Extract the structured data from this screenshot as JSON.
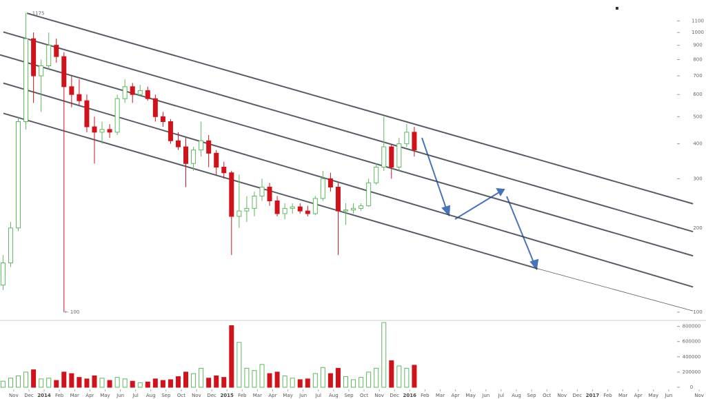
{
  "chart_data": {
    "type": "candlestick",
    "log_y": true,
    "up_color": "#5cb85c",
    "down_color": "#d0121b",
    "line_color": "#3a3f4b",
    "xlim": [
      -0.9,
      45.45
    ],
    "ylim": [
      95,
      1200
    ],
    "volume_ylim": [
      0,
      860000
    ],
    "yticks": [
      100,
      200,
      300,
      400,
      500,
      600,
      700,
      800,
      900,
      1000,
      1100
    ],
    "volume_yticks": [
      0,
      200000,
      400000,
      600000,
      800000
    ],
    "xticks": [
      {
        "value": 0,
        "label": "Nov"
      },
      {
        "value": 1,
        "label": "Dec"
      },
      {
        "value": 2,
        "label": "2014"
      },
      {
        "value": 3,
        "label": "Feb"
      },
      {
        "value": 4,
        "label": "Mar"
      },
      {
        "value": 5,
        "label": "Apr"
      },
      {
        "value": 6,
        "label": "May"
      },
      {
        "value": 7,
        "label": "Jun"
      },
      {
        "value": 8,
        "label": "Jul"
      },
      {
        "value": 9,
        "label": "Aug"
      },
      {
        "value": 10,
        "label": "Sep"
      },
      {
        "value": 11,
        "label": "Oct"
      },
      {
        "value": 12,
        "label": "Nov"
      },
      {
        "value": 13,
        "label": "Dec"
      },
      {
        "value": 14,
        "label": "2015"
      },
      {
        "value": 15,
        "label": "Feb"
      },
      {
        "value": 16,
        "label": "Mar"
      },
      {
        "value": 17,
        "label": "Apr"
      },
      {
        "value": 18,
        "label": "May"
      },
      {
        "value": 19,
        "label": "Jun"
      },
      {
        "value": 20,
        "label": "Jul"
      },
      {
        "value": 21,
        "label": "Aug"
      },
      {
        "value": 22,
        "label": "Sep"
      },
      {
        "value": 23,
        "label": "Oct"
      },
      {
        "value": 24,
        "label": "Nov"
      },
      {
        "value": 25,
        "label": "Dec"
      },
      {
        "value": 26,
        "label": "2016"
      },
      {
        "value": 27,
        "label": "Feb"
      },
      {
        "value": 28,
        "label": "Mar"
      },
      {
        "value": 29,
        "label": "Apr"
      },
      {
        "value": 30,
        "label": "May"
      },
      {
        "value": 31,
        "label": "Jun"
      },
      {
        "value": 32,
        "label": "Jul"
      },
      {
        "value": 33,
        "label": "Aug"
      },
      {
        "value": 34,
        "label": "Sep"
      },
      {
        "value": 35,
        "label": "Oct"
      },
      {
        "value": 36,
        "label": "Nov"
      },
      {
        "value": 37,
        "label": "Dec"
      },
      {
        "value": 38,
        "label": "2017"
      },
      {
        "value": 39,
        "label": "Feb"
      },
      {
        "value": 40,
        "label": "Mar"
      },
      {
        "value": 41,
        "label": "Apr"
      },
      {
        "value": 42,
        "label": "May"
      },
      {
        "value": 43,
        "label": "Jun"
      },
      {
        "value": 45,
        "label": "Nov"
      }
    ],
    "candles": {
      "x": [
        -0.7,
        -0.2,
        0.3,
        0.8,
        1.3,
        1.8,
        2.3,
        2.8,
        3.3,
        3.8,
        4.3,
        4.8,
        5.3,
        5.8,
        6.3,
        6.8,
        7.3,
        7.8,
        8.3,
        8.8,
        9.3,
        9.8,
        10.3,
        10.8,
        11.3,
        11.8,
        12.3,
        12.8,
        13.3,
        13.8,
        14.3,
        14.8,
        15.3,
        15.8,
        16.3,
        16.8,
        17.3,
        17.8,
        18.3,
        18.8,
        19.3,
        19.8,
        20.3,
        20.8,
        21.3,
        21.8,
        22.3,
        22.8,
        23.3,
        23.8,
        24.3,
        24.8,
        25.3,
        25.8,
        26.3
      ],
      "open": [
        125,
        150,
        200,
        480,
        950,
        700,
        760,
        900,
        820,
        640,
        600,
        570,
        460,
        440,
        450,
        440,
        580,
        640,
        600,
        620,
        580,
        500,
        480,
        410,
        390,
        340,
        380,
        410,
        370,
        330,
        315,
        220,
        230,
        235,
        260,
        280,
        250,
        225,
        235,
        238,
        230,
        225,
        255,
        300,
        280,
        230,
        232,
        235,
        240,
        290,
        330,
        390,
        330,
        400,
        440
      ],
      "high": [
        160,
        210,
        500,
        1175,
        1000,
        800,
        1000,
        950,
        850,
        700,
        680,
        600,
        500,
        480,
        470,
        600,
        680,
        660,
        650,
        640,
        600,
        520,
        490,
        440,
        420,
        390,
        480,
        430,
        380,
        345,
        320,
        310,
        260,
        270,
        300,
        290,
        260,
        245,
        245,
        245,
        240,
        260,
        320,
        315,
        290,
        245,
        245,
        245,
        300,
        340,
        500,
        400,
        420,
        470,
        460
      ],
      "low": [
        120,
        145,
        195,
        450,
        560,
        520,
        740,
        780,
        100,
        540,
        550,
        440,
        340,
        400,
        420,
        430,
        560,
        560,
        590,
        570,
        480,
        460,
        400,
        380,
        280,
        320,
        360,
        330,
        310,
        300,
        160,
        200,
        210,
        220,
        250,
        240,
        220,
        215,
        225,
        225,
        220,
        222,
        250,
        270,
        160,
        205,
        225,
        230,
        238,
        285,
        320,
        300,
        320,
        390,
        360
      ],
      "close": [
        150,
        200,
        480,
        950,
        700,
        760,
        900,
        820,
        640,
        600,
        570,
        460,
        440,
        450,
        440,
        580,
        640,
        600,
        620,
        580,
        500,
        480,
        410,
        390,
        340,
        380,
        410,
        370,
        330,
        315,
        220,
        230,
        235,
        260,
        280,
        250,
        225,
        235,
        238,
        230,
        225,
        255,
        300,
        280,
        230,
        232,
        235,
        240,
        290,
        330,
        390,
        330,
        400,
        440,
        380
      ],
      "volume": [
        80000,
        120000,
        150000,
        200000,
        230000,
        110000,
        120000,
        90000,
        200000,
        180000,
        130000,
        110000,
        150000,
        120000,
        90000,
        130000,
        110000,
        80000,
        60000,
        70000,
        110000,
        90000,
        100000,
        140000,
        200000,
        180000,
        250000,
        120000,
        150000,
        130000,
        810000,
        590000,
        250000,
        220000,
        300000,
        180000,
        200000,
        150000,
        120000,
        100000,
        110000,
        180000,
        260000,
        180000,
        250000,
        140000,
        100000,
        130000,
        200000,
        250000,
        850000,
        350000,
        280000,
        250000,
        290000
      ]
    },
    "trend_lines": [
      {
        "x": [
          0.9,
          44.6
        ],
        "y": [
          1170,
          244
        ]
      },
      {
        "x": [
          -0.68,
          44.6
        ],
        "y": [
          1004,
          194
        ]
      },
      {
        "x": [
          -0.9,
          44.6
        ],
        "y": [
          832,
          159
        ]
      },
      {
        "x": [
          -0.68,
          44.6
        ],
        "y": [
          659,
          123
        ]
      },
      {
        "x": [
          -0.68,
          34.4,
          44.6
        ],
        "y": [
          514,
          143,
          101
        ]
      }
    ],
    "annotations": [
      "← 1175",
      "← 100"
    ]
  }
}
